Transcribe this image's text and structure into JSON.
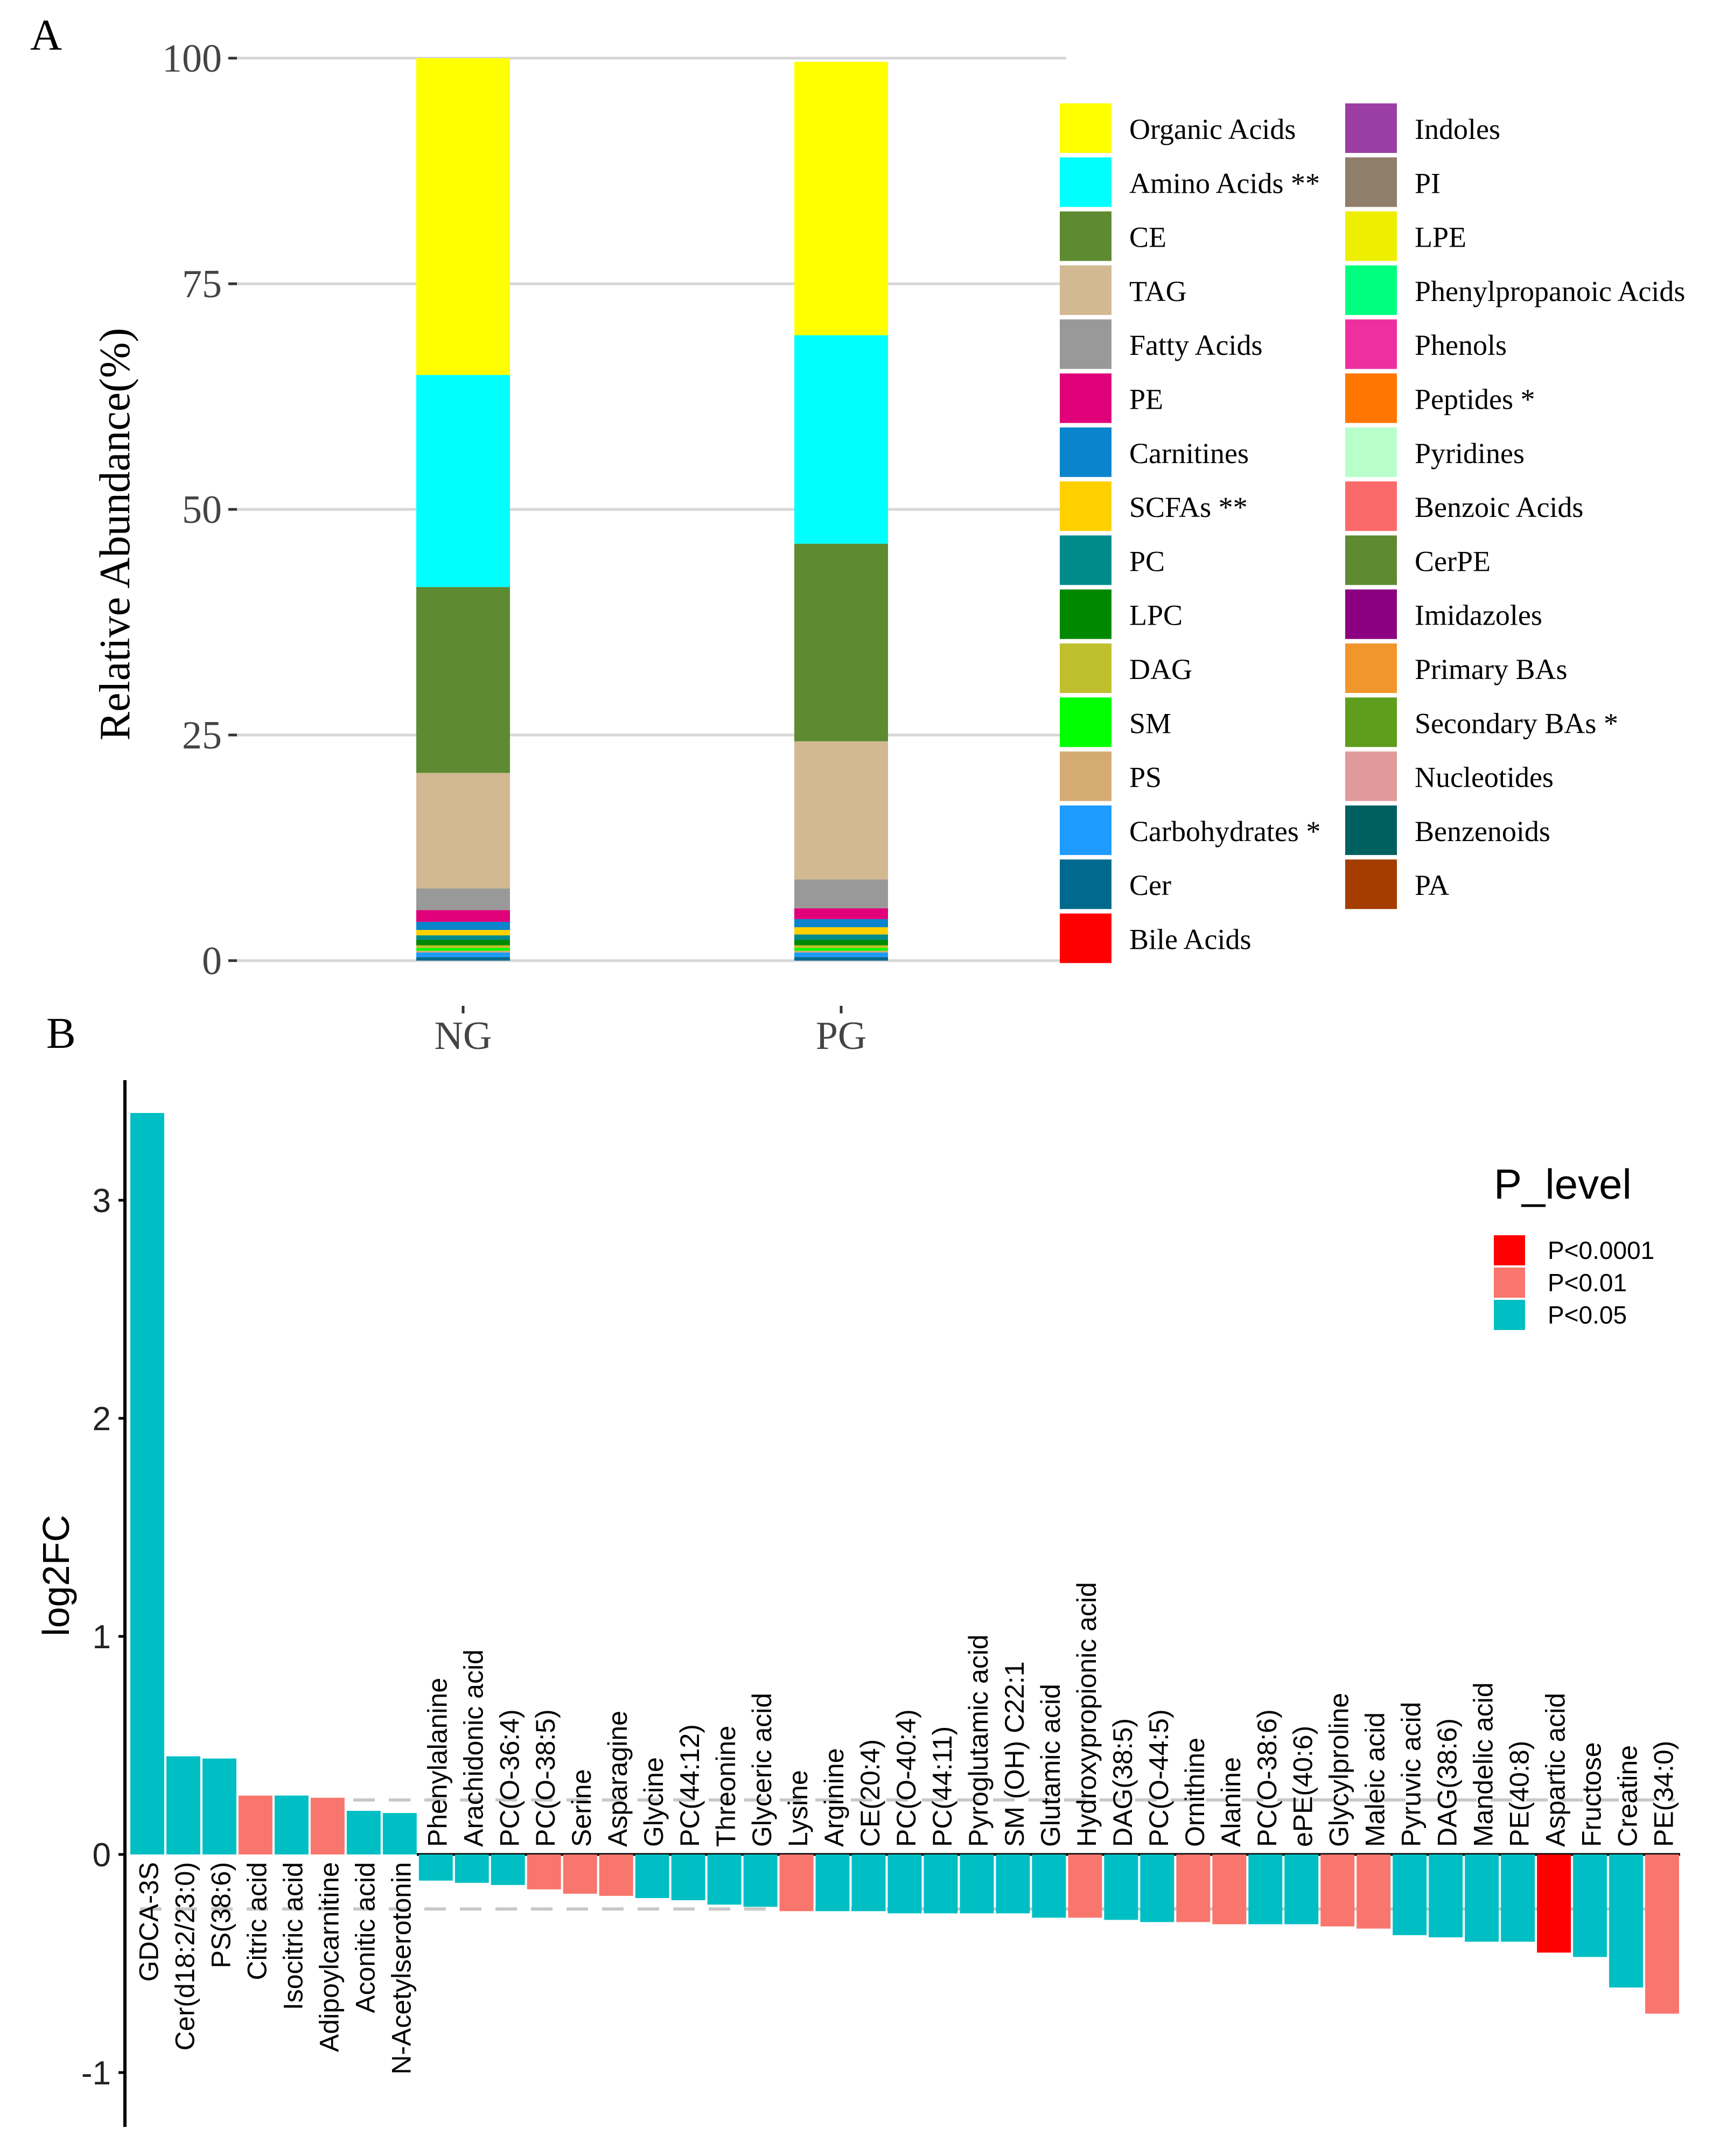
{
  "panel_a_label": "A",
  "panel_b_label": "B",
  "colors": {
    "Organic Acids": "#ffff00",
    "Amino Acids **": "#00ffff",
    "CE": "#5e8a32",
    "TAG": "#d2b992",
    "Fatty Acids": "#999999",
    "PE": "#e0007a",
    "Carnitines": "#0a84cc",
    "SCFAs **": "#ffd000",
    "PC": "#008b8b",
    "LPC": "#008800",
    "DAG": "#c0bf2e",
    "SM": "#00ff00",
    "PS": "#d4ab72",
    "Carbohydrates *": "#1e9bff",
    "Cer": "#006a8e",
    "Bile Acids": "#ff0000",
    "Indoles": "#9b3ea3",
    "PI": "#8e7e6a",
    "LPE": "#eeee00",
    "Phenylpropanoic Acids": "#00ff7f",
    "Phenols": "#ee2fa0",
    "Peptides *": "#ff7700",
    "Pyridines": "#b8ffcc",
    "Benzoic Acids": "#fa6a6a",
    "CerPE": "#5e8a32",
    "Imidazoles": "#8b0080",
    "Primary BAs": "#f0962a",
    "Secondary BAs *": "#5f9e1c",
    "Nucleotides": "#e09a9a",
    "Benzenoids": "#006060",
    "PA": "#a53d00"
  },
  "chart_data": [
    {
      "type": "bar",
      "subtype": "stacked-percent",
      "panel": "A",
      "title": "",
      "xlabel": "",
      "ylabel": "Relative Abundance(%)",
      "ylim": [
        0,
        100
      ],
      "yticks": [
        "0",
        "25",
        "50",
        "75",
        "100"
      ],
      "categories": [
        "NG",
        "PG"
      ],
      "legend_position": "right",
      "legend": [
        "Organic Acids",
        "Amino Acids **",
        "CE",
        "TAG",
        "Fatty Acids",
        "PE",
        "Carnitines",
        "SCFAs **",
        "PC",
        "LPC",
        "DAG",
        "SM",
        "PS",
        "Carbohydrates *",
        "Cer",
        "Bile Acids",
        "Indoles",
        "PI",
        "LPE",
        "Phenylpropanoic Acids",
        "Phenols",
        "Peptides *",
        "Pyridines",
        "Benzoic Acids",
        "CerPE",
        "Imidazoles",
        "Primary BAs",
        "Secondary BAs *",
        "Nucleotides",
        "Benzenoids",
        "PA"
      ],
      "series": [
        {
          "name": "Cer",
          "values": [
            0.4,
            0.4
          ]
        },
        {
          "name": "Carbohydrates *",
          "values": [
            0.5,
            0.5
          ]
        },
        {
          "name": "PS",
          "values": [
            0.2,
            0.2
          ]
        },
        {
          "name": "SM",
          "values": [
            0.3,
            0.3
          ]
        },
        {
          "name": "DAG",
          "values": [
            0.3,
            0.3
          ]
        },
        {
          "name": "LPC",
          "values": [
            0.6,
            0.6
          ]
        },
        {
          "name": "PC",
          "values": [
            0.5,
            0.6
          ]
        },
        {
          "name": "SCFAs **",
          "values": [
            0.6,
            0.8
          ]
        },
        {
          "name": "Carnitines",
          "values": [
            0.9,
            0.9
          ]
        },
        {
          "name": "PE",
          "values": [
            1.3,
            1.2
          ]
        },
        {
          "name": "Fatty Acids",
          "values": [
            2.4,
            3.2
          ]
        },
        {
          "name": "TAG",
          "values": [
            12.8,
            15.3
          ]
        },
        {
          "name": "CE",
          "values": [
            20.6,
            21.9
          ]
        },
        {
          "name": "Amino Acids **",
          "values": [
            23.5,
            23.1
          ]
        },
        {
          "name": "Organic Acids",
          "values": [
            35.1,
            30.3
          ]
        }
      ]
    },
    {
      "type": "bar",
      "panel": "B",
      "title": "",
      "xlabel": "",
      "ylabel": "log2FC",
      "ylim": [
        -1.2,
        3.55
      ],
      "yticks": [
        "-1",
        "0",
        "1",
        "2",
        "3"
      ],
      "threshold_lines": [
        0.25,
        -0.25
      ],
      "legend_title": "P_level",
      "legend_position": "top-right",
      "legend": [
        {
          "label": "P<0.0001",
          "color": "#ff0000"
        },
        {
          "label": "P<0.01",
          "color": "#f8766d"
        },
        {
          "label": "P<0.05",
          "color": "#00bfc4"
        }
      ],
      "categories": [
        "GDCA-3S",
        "Cer(d18:2/23:0)",
        "PS(38:6)",
        "Citric acid",
        "Isocitric acid",
        "Adipoylcarnitine",
        "Aconitic acid",
        "N-Acetylserotonin",
        "Phenylalanine",
        "Arachidonic acid",
        "PC(O-36:4)",
        "PC(O-38:5)",
        "Serine",
        "Asparagine",
        "Glycine",
        "PC(44:12)",
        "Threonine",
        "Glyceric acid",
        "Lysine",
        "Arginine",
        "CE(20:4)",
        "PC(O-40:4)",
        "PC(44:11)",
        "Pyroglutamic acid",
        "SM (OH) C22:1",
        "Glutamic acid",
        "Hydroxypropionic acid",
        "DAG(38:5)",
        "PC(O-44:5)",
        "Ornithine",
        "Alanine",
        "PC(O-38:6)",
        "ePE(40:6)",
        "Glycylproline",
        "Maleic acid",
        "Pyruvic acid",
        "DAG(38:6)",
        "Mandelic acid",
        "PE(40:8)",
        "Aspartic acid",
        "Fructose",
        "Creatine",
        "PE(34:0)"
      ],
      "values": [
        3.4,
        0.45,
        0.44,
        0.27,
        0.27,
        0.26,
        0.2,
        0.19,
        -0.12,
        -0.13,
        -0.14,
        -0.16,
        -0.18,
        -0.19,
        -0.2,
        -0.21,
        -0.23,
        -0.24,
        -0.26,
        -0.26,
        -0.26,
        -0.27,
        -0.27,
        -0.27,
        -0.27,
        -0.29,
        -0.29,
        -0.3,
        -0.31,
        -0.31,
        -0.32,
        -0.32,
        -0.32,
        -0.33,
        -0.34,
        -0.37,
        -0.38,
        -0.4,
        -0.4,
        -0.45,
        -0.47,
        -0.61,
        -0.73
      ],
      "levels": [
        "P<0.05",
        "P<0.05",
        "P<0.05",
        "P<0.01",
        "P<0.05",
        "P<0.01",
        "P<0.05",
        "P<0.05",
        "P<0.05",
        "P<0.05",
        "P<0.05",
        "P<0.01",
        "P<0.01",
        "P<0.01",
        "P<0.05",
        "P<0.05",
        "P<0.05",
        "P<0.05",
        "P<0.01",
        "P<0.05",
        "P<0.05",
        "P<0.05",
        "P<0.05",
        "P<0.05",
        "P<0.05",
        "P<0.05",
        "P<0.01",
        "P<0.05",
        "P<0.05",
        "P<0.01",
        "P<0.01",
        "P<0.05",
        "P<0.05",
        "P<0.01",
        "P<0.01",
        "P<0.05",
        "P<0.05",
        "P<0.05",
        "P<0.05",
        "P<0.0001",
        "P<0.05",
        "P<0.05",
        "P<0.01"
      ]
    }
  ]
}
